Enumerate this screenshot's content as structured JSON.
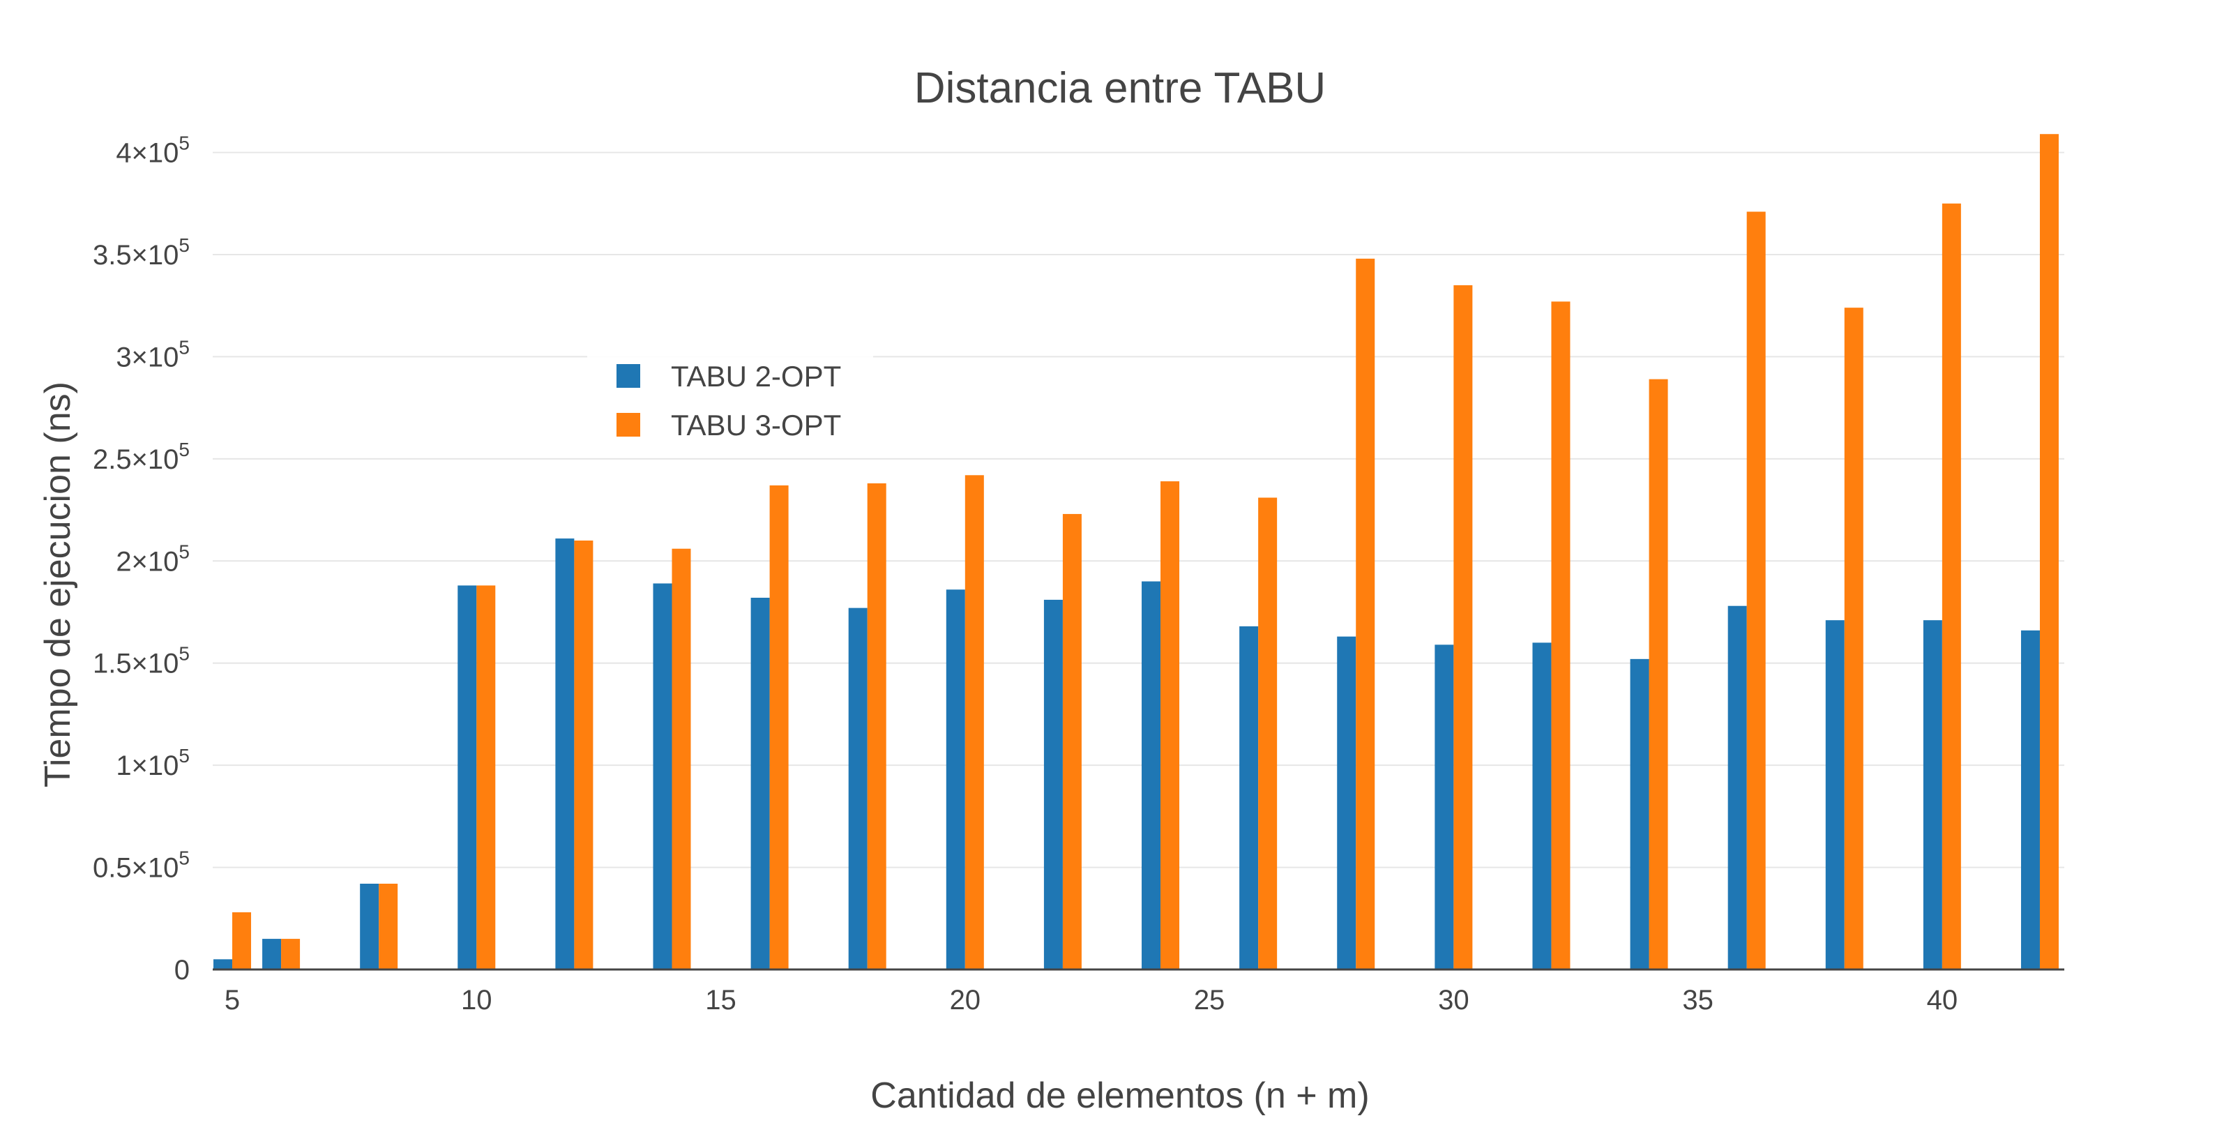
{
  "chart_data": {
    "type": "bar",
    "title": "Distancia entre TABU",
    "xlabel": "Cantidad de elementos (n + m)",
    "ylabel": "Tiempo de ejecucion (ns)",
    "x": [
      5,
      6,
      8,
      10,
      12,
      14,
      16,
      18,
      20,
      22,
      24,
      26,
      28,
      30,
      32,
      34,
      36,
      38,
      40,
      42
    ],
    "series": [
      {
        "name": "TABU 2-OPT",
        "color": "#1f77b4",
        "values": [
          5000,
          15000,
          42000,
          188000,
          211000,
          189000,
          182000,
          177000,
          186000,
          181000,
          190000,
          168000,
          163000,
          159000,
          160000,
          152000,
          178000,
          171000,
          171000,
          166000
        ]
      },
      {
        "name": "TABU 3-OPT",
        "color": "#ff7f0e",
        "values": [
          28000,
          15000,
          42000,
          188000,
          210000,
          206000,
          237000,
          238000,
          242000,
          223000,
          239000,
          231000,
          348000,
          335000,
          327000,
          289000,
          371000,
          324000,
          375000,
          409000
        ]
      }
    ],
    "xlim": [
      4.6,
      42.5
    ],
    "ylim": [
      0,
      420000
    ],
    "xticks": [
      5,
      10,
      15,
      20,
      25,
      30,
      35,
      40
    ],
    "yticks": [
      {
        "value": 0,
        "mantissa": "0",
        "exp": ""
      },
      {
        "value": 50000,
        "mantissa": "0.5×10",
        "exp": "5"
      },
      {
        "value": 100000,
        "mantissa": "1×10",
        "exp": "5"
      },
      {
        "value": 150000,
        "mantissa": "1.5×10",
        "exp": "5"
      },
      {
        "value": 200000,
        "mantissa": "2×10",
        "exp": "5"
      },
      {
        "value": 250000,
        "mantissa": "2.5×10",
        "exp": "5"
      },
      {
        "value": 300000,
        "mantissa": "3×10",
        "exp": "5"
      },
      {
        "value": 350000,
        "mantissa": "3.5×10",
        "exp": "5"
      },
      {
        "value": 400000,
        "mantissa": "4×10",
        "exp": "5"
      }
    ],
    "grid": true,
    "legend": "top-left inside"
  }
}
